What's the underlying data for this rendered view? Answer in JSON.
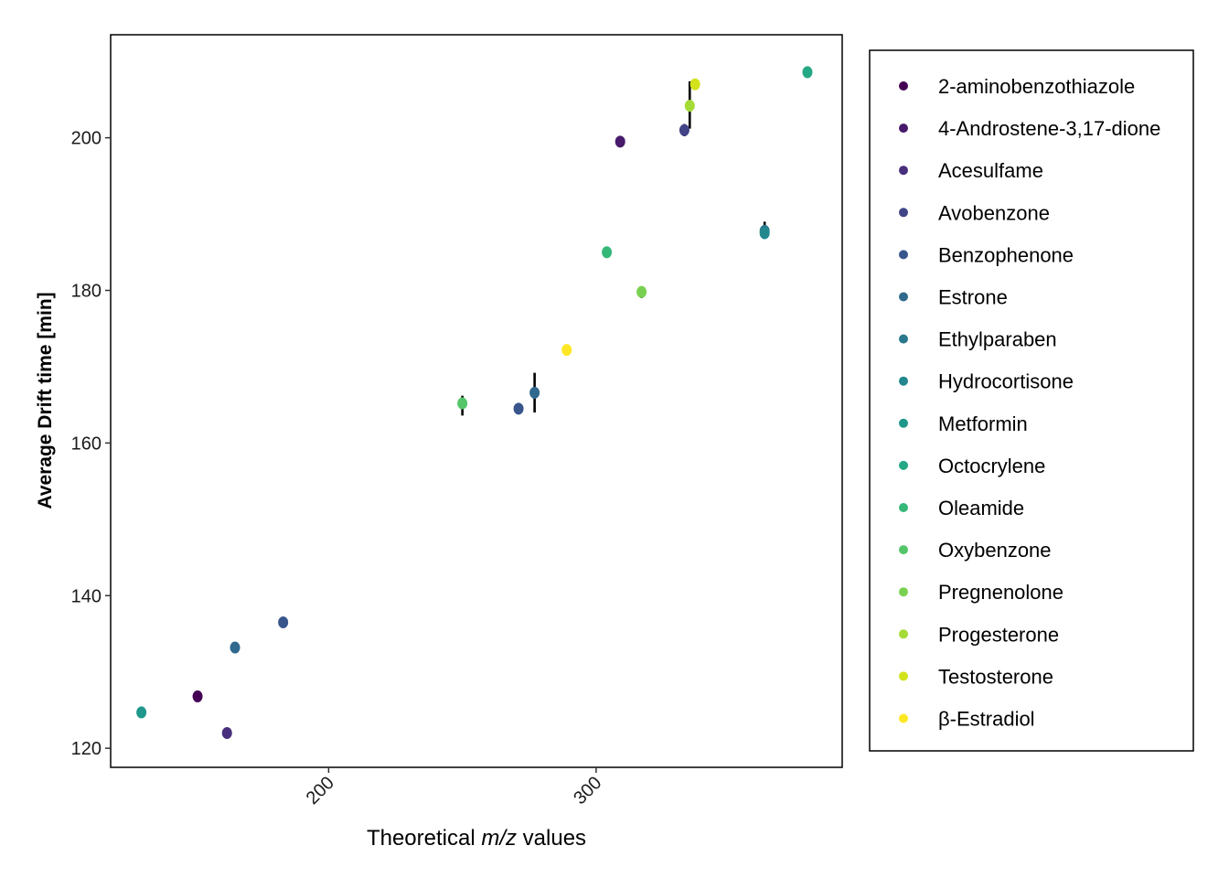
{
  "chart_data": {
    "type": "scatter",
    "title": "",
    "xlabel": {
      "pre": "Theoretical ",
      "ital": "m/z",
      "post": " values"
    },
    "ylabel": "Average Drift time [min]",
    "xlim": [
      118.5,
      392
    ],
    "ylim": [
      117.5,
      213.5
    ],
    "x_ticks": [
      200,
      300
    ],
    "x_tick_labels": [
      "200",
      "300"
    ],
    "y_ticks": [
      120,
      140,
      160,
      180,
      200
    ],
    "y_tick_labels": [
      "120",
      "140",
      "160",
      "180",
      "200"
    ],
    "grid": false,
    "legend_position": "right",
    "error_bars": "vertical, black",
    "series": [
      {
        "name": "2-aminobenzothiazole",
        "color": "#440154",
        "points": [
          {
            "x": 151,
            "y": 126.8,
            "lo": 126.3,
            "hi": 127.3
          }
        ]
      },
      {
        "name": "4-Androstene-3,17-dione",
        "color": "#481A6C",
        "points": [
          {
            "x": 309,
            "y": 199.5,
            "lo": 199.0,
            "hi": 200.0
          }
        ]
      },
      {
        "name": "Acesulfame",
        "color": "#472F7D",
        "points": [
          {
            "x": 162,
            "y": 122.0,
            "lo": 121.5,
            "hi": 122.5
          }
        ]
      },
      {
        "name": "Avobenzone",
        "color": "#414487",
        "points": [
          {
            "x": 333,
            "y": 201.0,
            "lo": 200.2,
            "hi": 201.8
          }
        ]
      },
      {
        "name": "Benzophenone",
        "color": "#39568C",
        "points": [
          {
            "x": 183,
            "y": 136.5,
            "lo": 135.8,
            "hi": 137.2
          },
          {
            "x": 271,
            "y": 164.5,
            "lo": 163.8,
            "hi": 165.2
          }
        ]
      },
      {
        "name": "Estrone",
        "color": "#31688E",
        "points": [
          {
            "x": 165,
            "y": 133.2,
            "lo": 132.6,
            "hi": 133.8
          },
          {
            "x": 277,
            "y": 166.6,
            "lo": 164.0,
            "hi": 169.2
          }
        ]
      },
      {
        "name": "Ethylparaben",
        "color": "#2A788E",
        "points": [
          {
            "x": 363,
            "y": 187.8,
            "lo": 186.8,
            "hi": 189.0
          }
        ]
      },
      {
        "name": "Hydrocortisone",
        "color": "#23888E",
        "points": [
          {
            "x": 363,
            "y": 187.5,
            "lo": 187.0,
            "hi": 188.0
          }
        ]
      },
      {
        "name": "Metformin",
        "color": "#1F988B",
        "points": [
          {
            "x": 130,
            "y": 124.7,
            "lo": 124.3,
            "hi": 125.1
          }
        ]
      },
      {
        "name": "Octocrylene",
        "color": "#22A884",
        "points": [
          {
            "x": 379,
            "y": 208.6,
            "lo": 208.0,
            "hi": 209.2
          }
        ]
      },
      {
        "name": "Oleamide",
        "color": "#35B779",
        "points": [
          {
            "x": 304,
            "y": 185.0,
            "lo": 184.3,
            "hi": 185.7
          }
        ]
      },
      {
        "name": "Oxybenzone",
        "color": "#54C568",
        "points": [
          {
            "x": 250,
            "y": 165.2,
            "lo": 163.6,
            "hi": 166.2
          }
        ]
      },
      {
        "name": "Pregnenolone",
        "color": "#7AD151",
        "points": [
          {
            "x": 317,
            "y": 179.8,
            "lo": 179.0,
            "hi": 180.4
          }
        ]
      },
      {
        "name": "Progesterone",
        "color": "#A5DB36",
        "points": [
          {
            "x": 335,
            "y": 204.2,
            "lo": 201.2,
            "hi": 207.4
          }
        ]
      },
      {
        "name": "Testosterone",
        "color": "#D2E21B",
        "points": [
          {
            "x": 337,
            "y": 207.0,
            "lo": 206.6,
            "hi": 207.4
          }
        ]
      },
      {
        "name": "β-Estradiol",
        "color": "#FDE725",
        "points": [
          {
            "x": 289,
            "y": 172.2,
            "lo": 171.6,
            "hi": 172.8
          }
        ]
      }
    ]
  }
}
